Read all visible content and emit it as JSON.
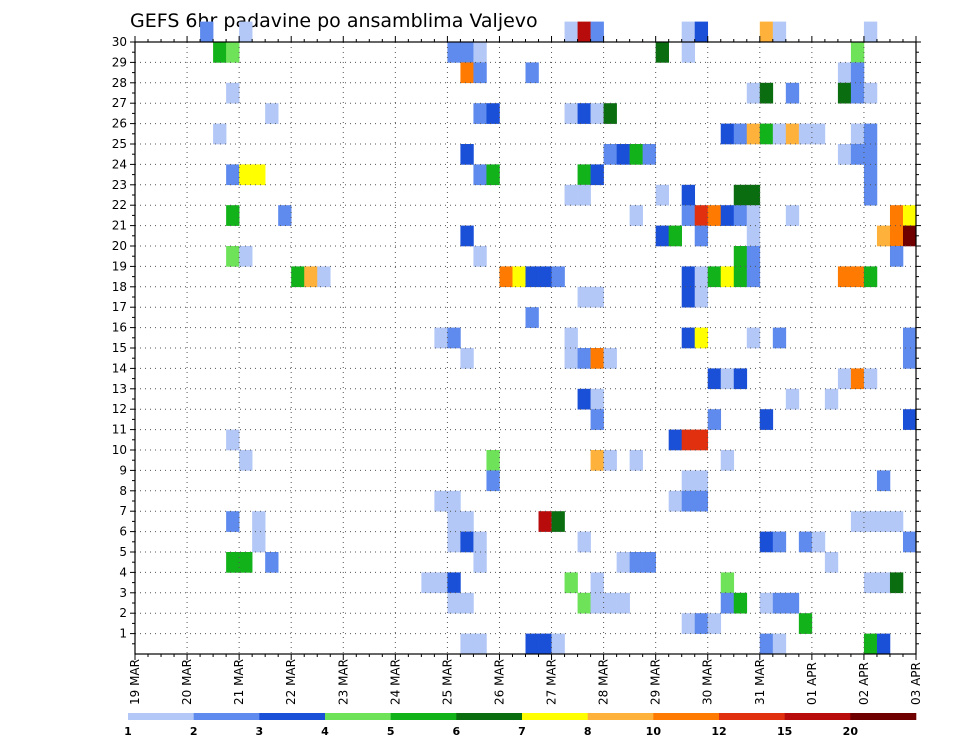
{
  "chart_data": {
    "type": "heatmap",
    "title": "GEFS 6hr padavine po ansamblima Valjevo",
    "x_tick_labels": [
      "19 MAR",
      "20 MAR",
      "21 MAR",
      "22 MAR",
      "23 MAR",
      "24 MAR",
      "25 MAR",
      "26 MAR",
      "27 MAR",
      "28 MAR",
      "29 MAR",
      "30 MAR",
      "31 MAR",
      "01 APR",
      "02 APR",
      "03 APR"
    ],
    "y_tick_labels": [
      "1",
      "2",
      "3",
      "4",
      "5",
      "6",
      "7",
      "8",
      "9",
      "10",
      "11",
      "12",
      "13",
      "14",
      "15",
      "16",
      "17",
      "18",
      "19",
      "20",
      "21",
      "22",
      "23",
      "24",
      "25",
      "26",
      "27",
      "28",
      "29",
      "30"
    ],
    "x_range": [
      0,
      60
    ],
    "y_range": [
      0,
      30
    ],
    "grid": true,
    "legend_position": "bottom",
    "color_levels": [
      {
        "label": "1",
        "color": "#b3c8f7"
      },
      {
        "label": "2",
        "color": "#5f8bee"
      },
      {
        "label": "3",
        "color": "#1a4fd8"
      },
      {
        "label": "4",
        "color": "#6ee35a"
      },
      {
        "label": "5",
        "color": "#12b31a"
      },
      {
        "label": "6",
        "color": "#0a6e10"
      },
      {
        "label": "7",
        "color": "#ffff00"
      },
      {
        "label": "8",
        "color": "#ffb23b"
      },
      {
        "label": "10",
        "color": "#ff7a00"
      },
      {
        "label": "12",
        "color": "#e03010"
      },
      {
        "label": "15",
        "color": "#b80c0c"
      },
      {
        "label": "20",
        "color": "#700000"
      }
    ],
    "cells": [
      {
        "member": 30,
        "step": 5,
        "level": 1
      },
      {
        "member": 30,
        "step": 8,
        "level": 0
      },
      {
        "member": 30,
        "step": 33,
        "level": 0
      },
      {
        "member": 30,
        "step": 34,
        "level": 10
      },
      {
        "member": 30,
        "step": 35,
        "level": 1
      },
      {
        "member": 30,
        "step": 42,
        "level": 0
      },
      {
        "member": 30,
        "step": 43,
        "level": 2
      },
      {
        "member": 30,
        "step": 48,
        "level": 7
      },
      {
        "member": 30,
        "step": 49,
        "level": 0
      },
      {
        "member": 30,
        "step": 56,
        "level": 0
      },
      {
        "member": 29,
        "step": 6,
        "level": 4
      },
      {
        "member": 29,
        "step": 7,
        "level": 3
      },
      {
        "member": 29,
        "step": 24,
        "level": 1
      },
      {
        "member": 29,
        "step": 25,
        "level": 1
      },
      {
        "member": 29,
        "step": 26,
        "level": 0
      },
      {
        "member": 29,
        "step": 40,
        "level": 5
      },
      {
        "member": 29,
        "step": 42,
        "level": 0
      },
      {
        "member": 29,
        "step": 55,
        "level": 3
      },
      {
        "member": 28,
        "step": 25,
        "level": 8
      },
      {
        "member": 28,
        "step": 26,
        "level": 1
      },
      {
        "member": 28,
        "step": 30,
        "level": 1
      },
      {
        "member": 28,
        "step": 54,
        "level": 0
      },
      {
        "member": 28,
        "step": 55,
        "level": 1
      },
      {
        "member": 27,
        "step": 7,
        "level": 0
      },
      {
        "member": 27,
        "step": 47,
        "level": 0
      },
      {
        "member": 27,
        "step": 48,
        "level": 5
      },
      {
        "member": 27,
        "step": 50,
        "level": 1
      },
      {
        "member": 27,
        "step": 54,
        "level": 5
      },
      {
        "member": 27,
        "step": 55,
        "level": 1
      },
      {
        "member": 27,
        "step": 56,
        "level": 0
      },
      {
        "member": 26,
        "step": 10,
        "level": 0
      },
      {
        "member": 26,
        "step": 26,
        "level": 1
      },
      {
        "member": 26,
        "step": 27,
        "level": 2
      },
      {
        "member": 26,
        "step": 33,
        "level": 0
      },
      {
        "member": 26,
        "step": 34,
        "level": 2
      },
      {
        "member": 26,
        "step": 35,
        "level": 0
      },
      {
        "member": 26,
        "step": 36,
        "level": 5
      },
      {
        "member": 25,
        "step": 6,
        "level": 0
      },
      {
        "member": 25,
        "step": 45,
        "level": 2
      },
      {
        "member": 25,
        "step": 46,
        "level": 1
      },
      {
        "member": 25,
        "step": 47,
        "level": 7
      },
      {
        "member": 25,
        "step": 48,
        "level": 4
      },
      {
        "member": 25,
        "step": 49,
        "level": 0
      },
      {
        "member": 25,
        "step": 50,
        "level": 7
      },
      {
        "member": 25,
        "step": 51,
        "level": 0
      },
      {
        "member": 25,
        "step": 52,
        "level": 0
      },
      {
        "member": 25,
        "step": 55,
        "level": 0
      },
      {
        "member": 25,
        "step": 56,
        "level": 1
      },
      {
        "member": 24,
        "step": 25,
        "level": 2
      },
      {
        "member": 24,
        "step": 36,
        "level": 1
      },
      {
        "member": 24,
        "step": 37,
        "level": 2
      },
      {
        "member": 24,
        "step": 38,
        "level": 4
      },
      {
        "member": 24,
        "step": 39,
        "level": 1
      },
      {
        "member": 24,
        "step": 54,
        "level": 0
      },
      {
        "member": 24,
        "step": 55,
        "level": 1
      },
      {
        "member": 24,
        "step": 56,
        "level": 1
      },
      {
        "member": 23,
        "step": 7,
        "level": 1
      },
      {
        "member": 23,
        "step": 8,
        "level": 6
      },
      {
        "member": 23,
        "step": 9,
        "level": 6
      },
      {
        "member": 23,
        "step": 26,
        "level": 1
      },
      {
        "member": 23,
        "step": 27,
        "level": 4
      },
      {
        "member": 23,
        "step": 34,
        "level": 4
      },
      {
        "member": 23,
        "step": 35,
        "level": 2
      },
      {
        "member": 23,
        "step": 56,
        "level": 1
      },
      {
        "member": 22,
        "step": 33,
        "level": 0
      },
      {
        "member": 22,
        "step": 34,
        "level": 0
      },
      {
        "member": 22,
        "step": 40,
        "level": 0
      },
      {
        "member": 22,
        "step": 42,
        "level": 2
      },
      {
        "member": 22,
        "step": 46,
        "level": 5
      },
      {
        "member": 22,
        "step": 47,
        "level": 5
      },
      {
        "member": 22,
        "step": 56,
        "level": 1
      },
      {
        "member": 21,
        "step": 7,
        "level": 4
      },
      {
        "member": 21,
        "step": 11,
        "level": 1
      },
      {
        "member": 21,
        "step": 38,
        "level": 0
      },
      {
        "member": 21,
        "step": 42,
        "level": 1
      },
      {
        "member": 21,
        "step": 43,
        "level": 9
      },
      {
        "member": 21,
        "step": 44,
        "level": 8
      },
      {
        "member": 21,
        "step": 45,
        "level": 2
      },
      {
        "member": 21,
        "step": 46,
        "level": 1
      },
      {
        "member": 21,
        "step": 47,
        "level": 0
      },
      {
        "member": 21,
        "step": 50,
        "level": 0
      },
      {
        "member": 21,
        "step": 58,
        "level": 8
      },
      {
        "member": 21,
        "step": 59,
        "level": 6
      },
      {
        "member": 20,
        "step": 25,
        "level": 2
      },
      {
        "member": 20,
        "step": 40,
        "level": 2
      },
      {
        "member": 20,
        "step": 41,
        "level": 4
      },
      {
        "member": 20,
        "step": 43,
        "level": 1
      },
      {
        "member": 20,
        "step": 47,
        "level": 0
      },
      {
        "member": 20,
        "step": 57,
        "level": 7
      },
      {
        "member": 20,
        "step": 58,
        "level": 8
      },
      {
        "member": 20,
        "step": 59,
        "level": 11
      },
      {
        "member": 19,
        "step": 7,
        "level": 3
      },
      {
        "member": 19,
        "step": 8,
        "level": 0
      },
      {
        "member": 19,
        "step": 26,
        "level": 0
      },
      {
        "member": 19,
        "step": 46,
        "level": 4
      },
      {
        "member": 19,
        "step": 47,
        "level": 1
      },
      {
        "member": 19,
        "step": 58,
        "level": 1
      },
      {
        "member": 18,
        "step": 12,
        "level": 4
      },
      {
        "member": 18,
        "step": 13,
        "level": 7
      },
      {
        "member": 18,
        "step": 14,
        "level": 0
      },
      {
        "member": 18,
        "step": 28,
        "level": 8
      },
      {
        "member": 18,
        "step": 29,
        "level": 6
      },
      {
        "member": 18,
        "step": 30,
        "level": 2
      },
      {
        "member": 18,
        "step": 31,
        "level": 2
      },
      {
        "member": 18,
        "step": 32,
        "level": 1
      },
      {
        "member": 18,
        "step": 42,
        "level": 2
      },
      {
        "member": 18,
        "step": 43,
        "level": 0
      },
      {
        "member": 18,
        "step": 44,
        "level": 4
      },
      {
        "member": 18,
        "step": 45,
        "level": 6
      },
      {
        "member": 18,
        "step": 46,
        "level": 4
      },
      {
        "member": 18,
        "step": 47,
        "level": 1
      },
      {
        "member": 18,
        "step": 54,
        "level": 8
      },
      {
        "member": 18,
        "step": 55,
        "level": 8
      },
      {
        "member": 18,
        "step": 56,
        "level": 4
      },
      {
        "member": 17,
        "step": 34,
        "level": 0
      },
      {
        "member": 17,
        "step": 35,
        "level": 0
      },
      {
        "member": 17,
        "step": 42,
        "level": 2
      },
      {
        "member": 17,
        "step": 43,
        "level": 0
      },
      {
        "member": 16,
        "step": 30,
        "level": 1
      },
      {
        "member": 15,
        "step": 23,
        "level": 0
      },
      {
        "member": 15,
        "step": 24,
        "level": 1
      },
      {
        "member": 15,
        "step": 33,
        "level": 0
      },
      {
        "member": 15,
        "step": 42,
        "level": 2
      },
      {
        "member": 15,
        "step": 43,
        "level": 6
      },
      {
        "member": 15,
        "step": 47,
        "level": 0
      },
      {
        "member": 15,
        "step": 49,
        "level": 1
      },
      {
        "member": 15,
        "step": 59,
        "level": 1
      },
      {
        "member": 14,
        "step": 25,
        "level": 0
      },
      {
        "member": 14,
        "step": 33,
        "level": 0
      },
      {
        "member": 14,
        "step": 34,
        "level": 1
      },
      {
        "member": 14,
        "step": 35,
        "level": 8
      },
      {
        "member": 14,
        "step": 36,
        "level": 0
      },
      {
        "member": 14,
        "step": 59,
        "level": 1
      },
      {
        "member": 13,
        "step": 44,
        "level": 2
      },
      {
        "member": 13,
        "step": 45,
        "level": 0
      },
      {
        "member": 13,
        "step": 46,
        "level": 2
      },
      {
        "member": 13,
        "step": 54,
        "level": 0
      },
      {
        "member": 13,
        "step": 55,
        "level": 8
      },
      {
        "member": 13,
        "step": 56,
        "level": 0
      },
      {
        "member": 12,
        "step": 34,
        "level": 2
      },
      {
        "member": 12,
        "step": 35,
        "level": 0
      },
      {
        "member": 12,
        "step": 50,
        "level": 0
      },
      {
        "member": 12,
        "step": 53,
        "level": 0
      },
      {
        "member": 11,
        "step": 35,
        "level": 1
      },
      {
        "member": 11,
        "step": 44,
        "level": 1
      },
      {
        "member": 11,
        "step": 48,
        "level": 2
      },
      {
        "member": 11,
        "step": 59,
        "level": 2
      },
      {
        "member": 10,
        "step": 7,
        "level": 0
      },
      {
        "member": 10,
        "step": 41,
        "level": 2
      },
      {
        "member": 10,
        "step": 42,
        "level": 9
      },
      {
        "member": 10,
        "step": 43,
        "level": 9
      },
      {
        "member": 9,
        "step": 8,
        "level": 0
      },
      {
        "member": 9,
        "step": 27,
        "level": 3
      },
      {
        "member": 9,
        "step": 35,
        "level": 7
      },
      {
        "member": 9,
        "step": 36,
        "level": 0
      },
      {
        "member": 9,
        "step": 38,
        "level": 0
      },
      {
        "member": 9,
        "step": 45,
        "level": 0
      },
      {
        "member": 8,
        "step": 27,
        "level": 1
      },
      {
        "member": 8,
        "step": 42,
        "level": 0
      },
      {
        "member": 8,
        "step": 43,
        "level": 0
      },
      {
        "member": 8,
        "step": 57,
        "level": 1
      },
      {
        "member": 7,
        "step": 23,
        "level": 0
      },
      {
        "member": 7,
        "step": 24,
        "level": 0
      },
      {
        "member": 7,
        "step": 41,
        "level": 0
      },
      {
        "member": 7,
        "step": 42,
        "level": 1
      },
      {
        "member": 7,
        "step": 43,
        "level": 1
      },
      {
        "member": 6,
        "step": 7,
        "level": 1
      },
      {
        "member": 6,
        "step": 9,
        "level": 0
      },
      {
        "member": 6,
        "step": 24,
        "level": 0
      },
      {
        "member": 6,
        "step": 25,
        "level": 0
      },
      {
        "member": 6,
        "step": 31,
        "level": 10
      },
      {
        "member": 6,
        "step": 32,
        "level": 5
      },
      {
        "member": 6,
        "step": 55,
        "level": 0
      },
      {
        "member": 6,
        "step": 56,
        "level": 0
      },
      {
        "member": 6,
        "step": 57,
        "level": 0
      },
      {
        "member": 6,
        "step": 58,
        "level": 0
      },
      {
        "member": 5,
        "step": 9,
        "level": 0
      },
      {
        "member": 5,
        "step": 24,
        "level": 0
      },
      {
        "member": 5,
        "step": 25,
        "level": 2
      },
      {
        "member": 5,
        "step": 26,
        "level": 0
      },
      {
        "member": 5,
        "step": 34,
        "level": 0
      },
      {
        "member": 5,
        "step": 48,
        "level": 2
      },
      {
        "member": 5,
        "step": 49,
        "level": 1
      },
      {
        "member": 5,
        "step": 51,
        "level": 1
      },
      {
        "member": 5,
        "step": 52,
        "level": 0
      },
      {
        "member": 5,
        "step": 59,
        "level": 1
      },
      {
        "member": 4,
        "step": 7,
        "level": 4
      },
      {
        "member": 4,
        "step": 8,
        "level": 4
      },
      {
        "member": 4,
        "step": 10,
        "level": 1
      },
      {
        "member": 4,
        "step": 26,
        "level": 0
      },
      {
        "member": 4,
        "step": 37,
        "level": 0
      },
      {
        "member": 4,
        "step": 38,
        "level": 1
      },
      {
        "member": 4,
        "step": 39,
        "level": 1
      },
      {
        "member": 4,
        "step": 53,
        "level": 0
      },
      {
        "member": 3,
        "step": 22,
        "level": 0
      },
      {
        "member": 3,
        "step": 23,
        "level": 0
      },
      {
        "member": 3,
        "step": 24,
        "level": 2
      },
      {
        "member": 3,
        "step": 33,
        "level": 3
      },
      {
        "member": 3,
        "step": 35,
        "level": 0
      },
      {
        "member": 3,
        "step": 45,
        "level": 3
      },
      {
        "member": 3,
        "step": 56,
        "level": 0
      },
      {
        "member": 3,
        "step": 57,
        "level": 0
      },
      {
        "member": 3,
        "step": 58,
        "level": 5
      },
      {
        "member": 2,
        "step": 24,
        "level": 0
      },
      {
        "member": 2,
        "step": 25,
        "level": 0
      },
      {
        "member": 2,
        "step": 34,
        "level": 3
      },
      {
        "member": 2,
        "step": 35,
        "level": 0
      },
      {
        "member": 2,
        "step": 36,
        "level": 0
      },
      {
        "member": 2,
        "step": 37,
        "level": 0
      },
      {
        "member": 2,
        "step": 45,
        "level": 1
      },
      {
        "member": 2,
        "step": 46,
        "level": 4
      },
      {
        "member": 2,
        "step": 48,
        "level": 0
      },
      {
        "member": 2,
        "step": 49,
        "level": 1
      },
      {
        "member": 2,
        "step": 50,
        "level": 1
      },
      {
        "member": 1,
        "step": 42,
        "level": 0
      },
      {
        "member": 1,
        "step": 43,
        "level": 1
      },
      {
        "member": 1,
        "step": 44,
        "level": 0
      },
      {
        "member": 1,
        "step": 51,
        "level": 4
      },
      {
        "member": 0,
        "step": 25,
        "level": 0
      },
      {
        "member": 0,
        "step": 26,
        "level": 0
      },
      {
        "member": 0,
        "step": 30,
        "level": 2
      },
      {
        "member": 0,
        "step": 31,
        "level": 2
      },
      {
        "member": 0,
        "step": 32,
        "level": 0
      },
      {
        "member": 0,
        "step": 48,
        "level": 1
      },
      {
        "member": 0,
        "step": 49,
        "level": 0
      },
      {
        "member": 0,
        "step": 56,
        "level": 4
      },
      {
        "member": 0,
        "step": 57,
        "level": 2
      }
    ]
  }
}
